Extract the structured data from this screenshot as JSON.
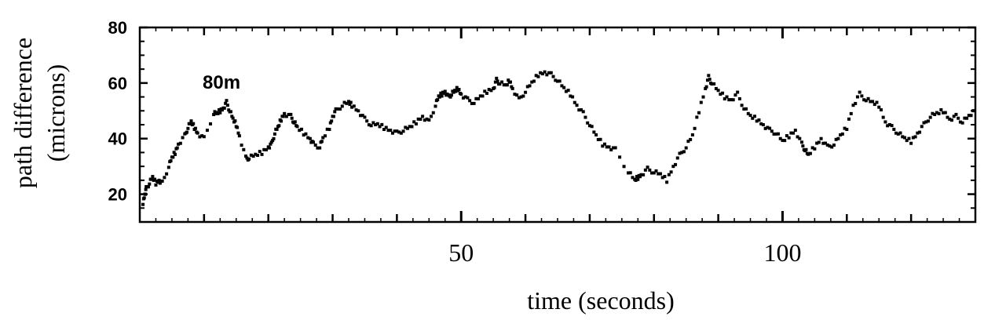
{
  "chart_data": {
    "type": "scatter",
    "title": "",
    "xlabel": "time (seconds)",
    "ylabel_line1": "path difference",
    "ylabel_line2": "(microns)",
    "xlim": [
      0,
      130
    ],
    "ylim": [
      10,
      80
    ],
    "x_ticks": [
      50,
      100
    ],
    "y_ticks": [
      20,
      40,
      60,
      80
    ],
    "x_minor_ticks": [
      10,
      20,
      30,
      40,
      60,
      70,
      80,
      90,
      110,
      120
    ],
    "grid": false,
    "annotation": "80m",
    "series": [
      {
        "marker_color": "#000000",
        "points": [
          [
            0.5,
            17
          ],
          [
            0.8,
            20
          ],
          [
            1,
            22
          ],
          [
            1.5,
            24
          ],
          [
            2,
            26
          ],
          [
            2.5,
            24
          ],
          [
            3,
            25
          ],
          [
            3.5,
            24
          ],
          [
            4.5,
            30
          ],
          [
            5,
            33
          ],
          [
            5.5,
            35
          ],
          [
            6,
            38
          ],
          [
            7,
            41
          ],
          [
            7.5,
            44
          ],
          [
            8,
            46
          ],
          [
            8.5,
            44
          ],
          [
            9,
            42
          ],
          [
            10,
            40
          ],
          [
            11.5,
            49
          ],
          [
            12,
            49
          ],
          [
            12.5,
            50
          ],
          [
            13,
            51
          ],
          [
            13.5,
            53
          ],
          [
            14,
            50
          ],
          [
            14.5,
            47
          ],
          [
            15,
            45
          ],
          [
            15.5,
            41
          ],
          [
            16.5,
            33
          ],
          [
            17,
            33
          ],
          [
            18,
            34
          ],
          [
            19,
            35
          ],
          [
            20,
            37
          ],
          [
            20.5,
            38
          ],
          [
            21,
            42
          ],
          [
            21.5,
            44
          ],
          [
            22,
            47
          ],
          [
            22.5,
            49
          ],
          [
            23.5,
            48
          ],
          [
            24,
            46
          ],
          [
            24.5,
            44
          ],
          [
            25.5,
            42
          ],
          [
            26.5,
            40
          ],
          [
            27,
            38
          ],
          [
            28,
            37
          ],
          [
            28.5,
            40
          ],
          [
            29.5,
            44
          ],
          [
            30,
            48
          ],
          [
            30.5,
            50
          ],
          [
            31.5,
            52
          ],
          [
            32.5,
            53
          ],
          [
            33,
            52
          ],
          [
            34,
            50
          ],
          [
            35,
            47
          ],
          [
            36,
            45
          ],
          [
            37,
            45
          ],
          [
            38,
            44
          ],
          [
            39,
            43
          ],
          [
            40,
            42
          ],
          [
            41,
            43
          ],
          [
            42,
            44
          ],
          [
            43,
            46
          ],
          [
            44,
            48
          ],
          [
            45,
            46
          ],
          [
            46,
            52
          ],
          [
            46.5,
            55
          ],
          [
            47,
            56
          ],
          [
            47.5,
            57
          ],
          [
            48,
            55
          ],
          [
            48.5,
            56
          ],
          [
            49,
            57
          ],
          [
            49.5,
            58
          ],
          [
            50,
            56
          ],
          [
            51,
            54
          ],
          [
            52,
            53
          ],
          [
            53,
            55
          ],
          [
            54,
            57
          ],
          [
            55,
            58
          ],
          [
            55.5,
            61
          ],
          [
            56,
            60
          ],
          [
            57,
            59
          ],
          [
            57.5,
            61
          ],
          [
            58,
            58
          ],
          [
            59,
            54
          ],
          [
            60,
            57
          ],
          [
            61,
            60
          ],
          [
            62,
            63
          ],
          [
            63,
            64
          ],
          [
            64,
            63
          ],
          [
            65,
            61
          ],
          [
            66,
            58
          ],
          [
            67,
            56
          ],
          [
            68,
            52
          ],
          [
            69,
            49
          ],
          [
            70,
            45
          ],
          [
            71,
            41
          ],
          [
            72,
            38
          ],
          [
            73,
            37
          ],
          [
            74,
            36
          ],
          [
            76,
            28
          ],
          [
            77,
            25
          ],
          [
            77.5,
            26
          ],
          [
            78,
            27
          ],
          [
            79,
            29
          ],
          [
            80,
            28
          ],
          [
            81,
            27
          ],
          [
            82,
            25
          ],
          [
            83,
            30
          ],
          [
            84,
            34
          ],
          [
            85,
            37
          ],
          [
            86,
            41
          ],
          [
            87,
            50
          ],
          [
            88,
            58
          ],
          [
            88.5,
            62
          ],
          [
            89,
            60
          ],
          [
            90,
            57
          ],
          [
            91,
            55
          ],
          [
            92,
            54
          ],
          [
            93,
            56
          ],
          [
            94,
            51
          ],
          [
            95,
            48
          ],
          [
            96,
            47
          ],
          [
            97,
            45
          ],
          [
            98,
            43
          ],
          [
            99,
            42
          ],
          [
            100,
            39
          ],
          [
            101,
            41
          ],
          [
            102,
            43
          ],
          [
            103,
            38
          ],
          [
            103.5,
            36
          ],
          [
            104,
            34
          ],
          [
            105,
            37
          ],
          [
            106,
            40
          ],
          [
            107,
            37
          ],
          [
            108,
            38
          ],
          [
            109,
            41
          ],
          [
            110,
            44
          ],
          [
            111,
            52
          ],
          [
            112,
            56
          ],
          [
            113,
            54
          ],
          [
            114,
            53
          ],
          [
            115,
            52
          ],
          [
            116,
            46
          ],
          [
            117,
            44
          ],
          [
            118,
            42
          ],
          [
            119,
            40
          ],
          [
            120,
            39
          ],
          [
            121,
            42
          ],
          [
            122,
            45
          ],
          [
            123,
            48
          ],
          [
            124,
            49
          ],
          [
            125,
            50
          ],
          [
            126,
            47
          ],
          [
            127,
            48
          ],
          [
            128,
            46
          ],
          [
            129,
            48
          ],
          [
            130,
            50
          ],
          [
            131,
            52
          ],
          [
            132,
            54
          ]
        ]
      }
    ]
  }
}
